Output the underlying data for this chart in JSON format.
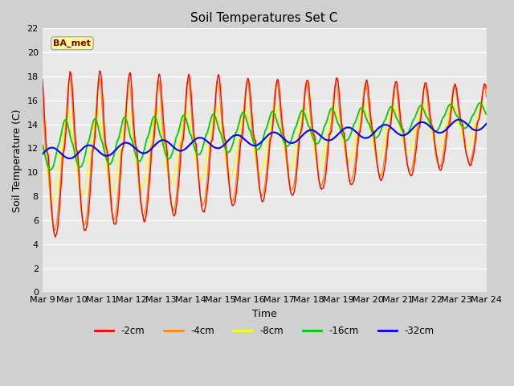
{
  "title": "Soil Temperatures Set C",
  "xlabel": "Time",
  "ylabel": "Soil Temperature (C)",
  "ylim": [
    0,
    22
  ],
  "yticks": [
    0,
    2,
    4,
    6,
    8,
    10,
    12,
    14,
    16,
    18,
    20,
    22
  ],
  "fig_bg_color": "#d0d0d0",
  "plot_bg_color": "#e8e8e8",
  "legend_label": "BA_met",
  "legend_text_color": "#8b0000",
  "legend_box_color": "#ffff99",
  "colors": {
    "-2cm": "#ff0000",
    "-4cm": "#ff8c00",
    "-8cm": "#ffff00",
    "-16cm": "#00cc00",
    "-32cm": "#0000ff"
  },
  "xtick_labels": [
    "Mar 9",
    "Mar 10",
    "Mar 11",
    "Mar 12",
    "Mar 13",
    "Mar 14",
    "Mar 15",
    "Mar 16",
    "Mar 17",
    "Mar 18",
    "Mar 19",
    "Mar 20",
    "Mar 21",
    "Mar 22",
    "Mar 23",
    "Mar 24"
  ]
}
